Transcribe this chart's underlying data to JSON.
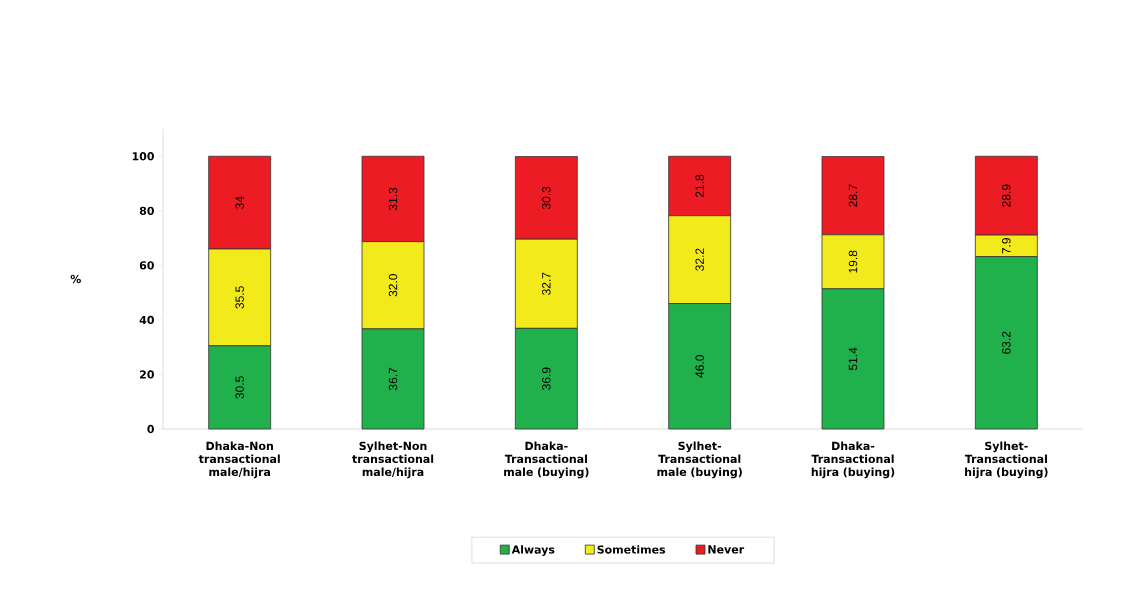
{
  "chart_data": {
    "type": "bar",
    "stacked": true,
    "ylabel": "%",
    "categories": [
      "Dhaka-Non transactional male/hijra",
      "Sylhet-Non transactional male/hijra",
      "Dhaka-Transactional male (buying)",
      "Sylhet-Transactional male (buying)",
      "Dhaka-Transactional hijra (buying)",
      "Sylhet-Transactional hijra (buying)"
    ],
    "series": [
      {
        "name": "Always",
        "color": "#21b14c",
        "values": [
          30.5,
          36.7,
          36.9,
          46.0,
          51.4,
          63.2
        ],
        "value_labels": [
          "30.5",
          "36.7",
          "36.9",
          "46.0",
          "51.4",
          "63.2"
        ]
      },
      {
        "name": "Sometimes",
        "color": "#f2ea1a",
        "values": [
          35.5,
          32.0,
          32.7,
          32.2,
          19.8,
          7.9
        ],
        "value_labels": [
          "35.5",
          "32.0",
          "32.7",
          "32.2",
          "19.8",
          "7.9"
        ]
      },
      {
        "name": "Never",
        "color": "#ed1c24",
        "values": [
          34,
          31.3,
          30.3,
          21.8,
          28.7,
          28.9
        ],
        "value_labels": [
          "34",
          "31.3",
          "30.3",
          "21.8",
          "28.7",
          "28.9"
        ]
      }
    ],
    "ylim": [
      0,
      110
    ],
    "yticks": [
      0,
      20,
      40,
      60,
      80,
      100
    ],
    "grid": false,
    "legend": "bottom"
  }
}
